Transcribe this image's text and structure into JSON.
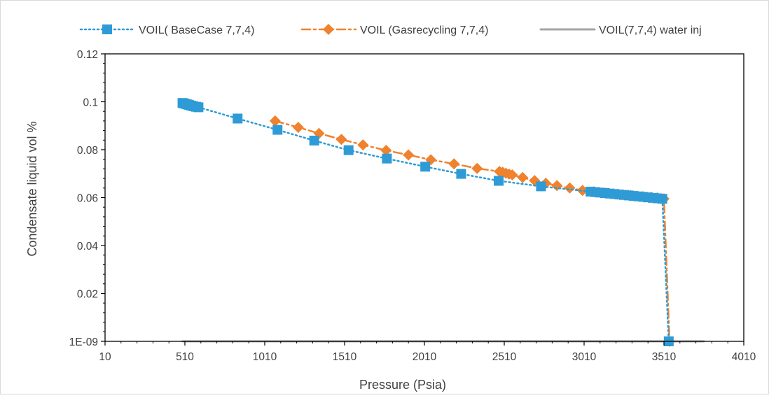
{
  "chart_data": {
    "type": "line",
    "title": "",
    "xlabel": "Pressure (Psia)",
    "ylabel": "Condensate liquid vol %",
    "xlim": [
      10,
      4010
    ],
    "ylim": [
      0,
      0.12
    ],
    "x_ticks": [
      "10",
      "510",
      "1010",
      "1510",
      "2010",
      "2510",
      "3010",
      "3510",
      "4010"
    ],
    "y_ticks": [
      "1E-09",
      "0.02",
      "0.04",
      "0.06",
      "0.08",
      "0.1",
      "0.12"
    ],
    "grid": false,
    "legend_position": "top",
    "series": [
      {
        "name": "VOIL( BaseCase 7,7,4)",
        "color": "#2E9BD6",
        "line": "dotted",
        "marker": "square",
        "points": [
          [
            495,
            0.0995
          ],
          [
            505,
            0.0993
          ],
          [
            515,
            0.0991
          ],
          [
            525,
            0.0989
          ],
          [
            535,
            0.0987
          ],
          [
            550,
            0.0984
          ],
          [
            565,
            0.0981
          ],
          [
            580,
            0.0979
          ],
          [
            595,
            0.0977
          ],
          [
            840,
            0.093
          ],
          [
            1090,
            0.0883
          ],
          [
            1320,
            0.0838
          ],
          [
            1535,
            0.0798
          ],
          [
            1775,
            0.0763
          ],
          [
            2015,
            0.0729
          ],
          [
            2240,
            0.0699
          ],
          [
            2475,
            0.067
          ],
          [
            2740,
            0.0647
          ],
          [
            3050,
            0.0625
          ],
          [
            3080,
            0.0623
          ],
          [
            3110,
            0.0621
          ],
          [
            3140,
            0.0619
          ],
          [
            3170,
            0.0617
          ],
          [
            3200,
            0.0615
          ],
          [
            3230,
            0.0613
          ],
          [
            3260,
            0.0611
          ],
          [
            3290,
            0.0609
          ],
          [
            3320,
            0.0607
          ],
          [
            3350,
            0.0605
          ],
          [
            3380,
            0.0603
          ],
          [
            3410,
            0.0601
          ],
          [
            3440,
            0.0599
          ],
          [
            3470,
            0.0597
          ],
          [
            3500,
            0.0595
          ],
          [
            3540,
            0.0
          ]
        ]
      },
      {
        "name": "VOIL (Gasrecycling 7,7,4)",
        "color": "#F0822D",
        "line": "dash-dot",
        "marker": "diamond",
        "points": [
          [
            1075,
            0.092
          ],
          [
            1220,
            0.0893
          ],
          [
            1350,
            0.0868
          ],
          [
            1490,
            0.0843
          ],
          [
            1625,
            0.082
          ],
          [
            1770,
            0.0797
          ],
          [
            1910,
            0.0778
          ],
          [
            2050,
            0.0758
          ],
          [
            2195,
            0.0741
          ],
          [
            2340,
            0.0722
          ],
          [
            2480,
            0.0709
          ],
          [
            2500,
            0.0706
          ],
          [
            2520,
            0.0702
          ],
          [
            2540,
            0.0698
          ],
          [
            2560,
            0.0695
          ],
          [
            2625,
            0.0684
          ],
          [
            2700,
            0.0671
          ],
          [
            2770,
            0.066
          ],
          [
            2840,
            0.065
          ],
          [
            2920,
            0.064
          ],
          [
            3000,
            0.063
          ],
          [
            3070,
            0.0624
          ],
          [
            3150,
            0.0619
          ],
          [
            3220,
            0.0614
          ],
          [
            3300,
            0.0609
          ],
          [
            3380,
            0.0604
          ],
          [
            3430,
            0.0601
          ],
          [
            3470,
            0.0599
          ],
          [
            3510,
            0.0595
          ],
          [
            3545,
            0.0
          ]
        ]
      },
      {
        "name": "VOIL(7,7,4) water inj",
        "color": "#A5A5A5",
        "line": "solid",
        "marker": "none",
        "points": [
          [
            495,
            0.0
          ],
          [
            3760,
            0.0
          ]
        ]
      }
    ]
  }
}
